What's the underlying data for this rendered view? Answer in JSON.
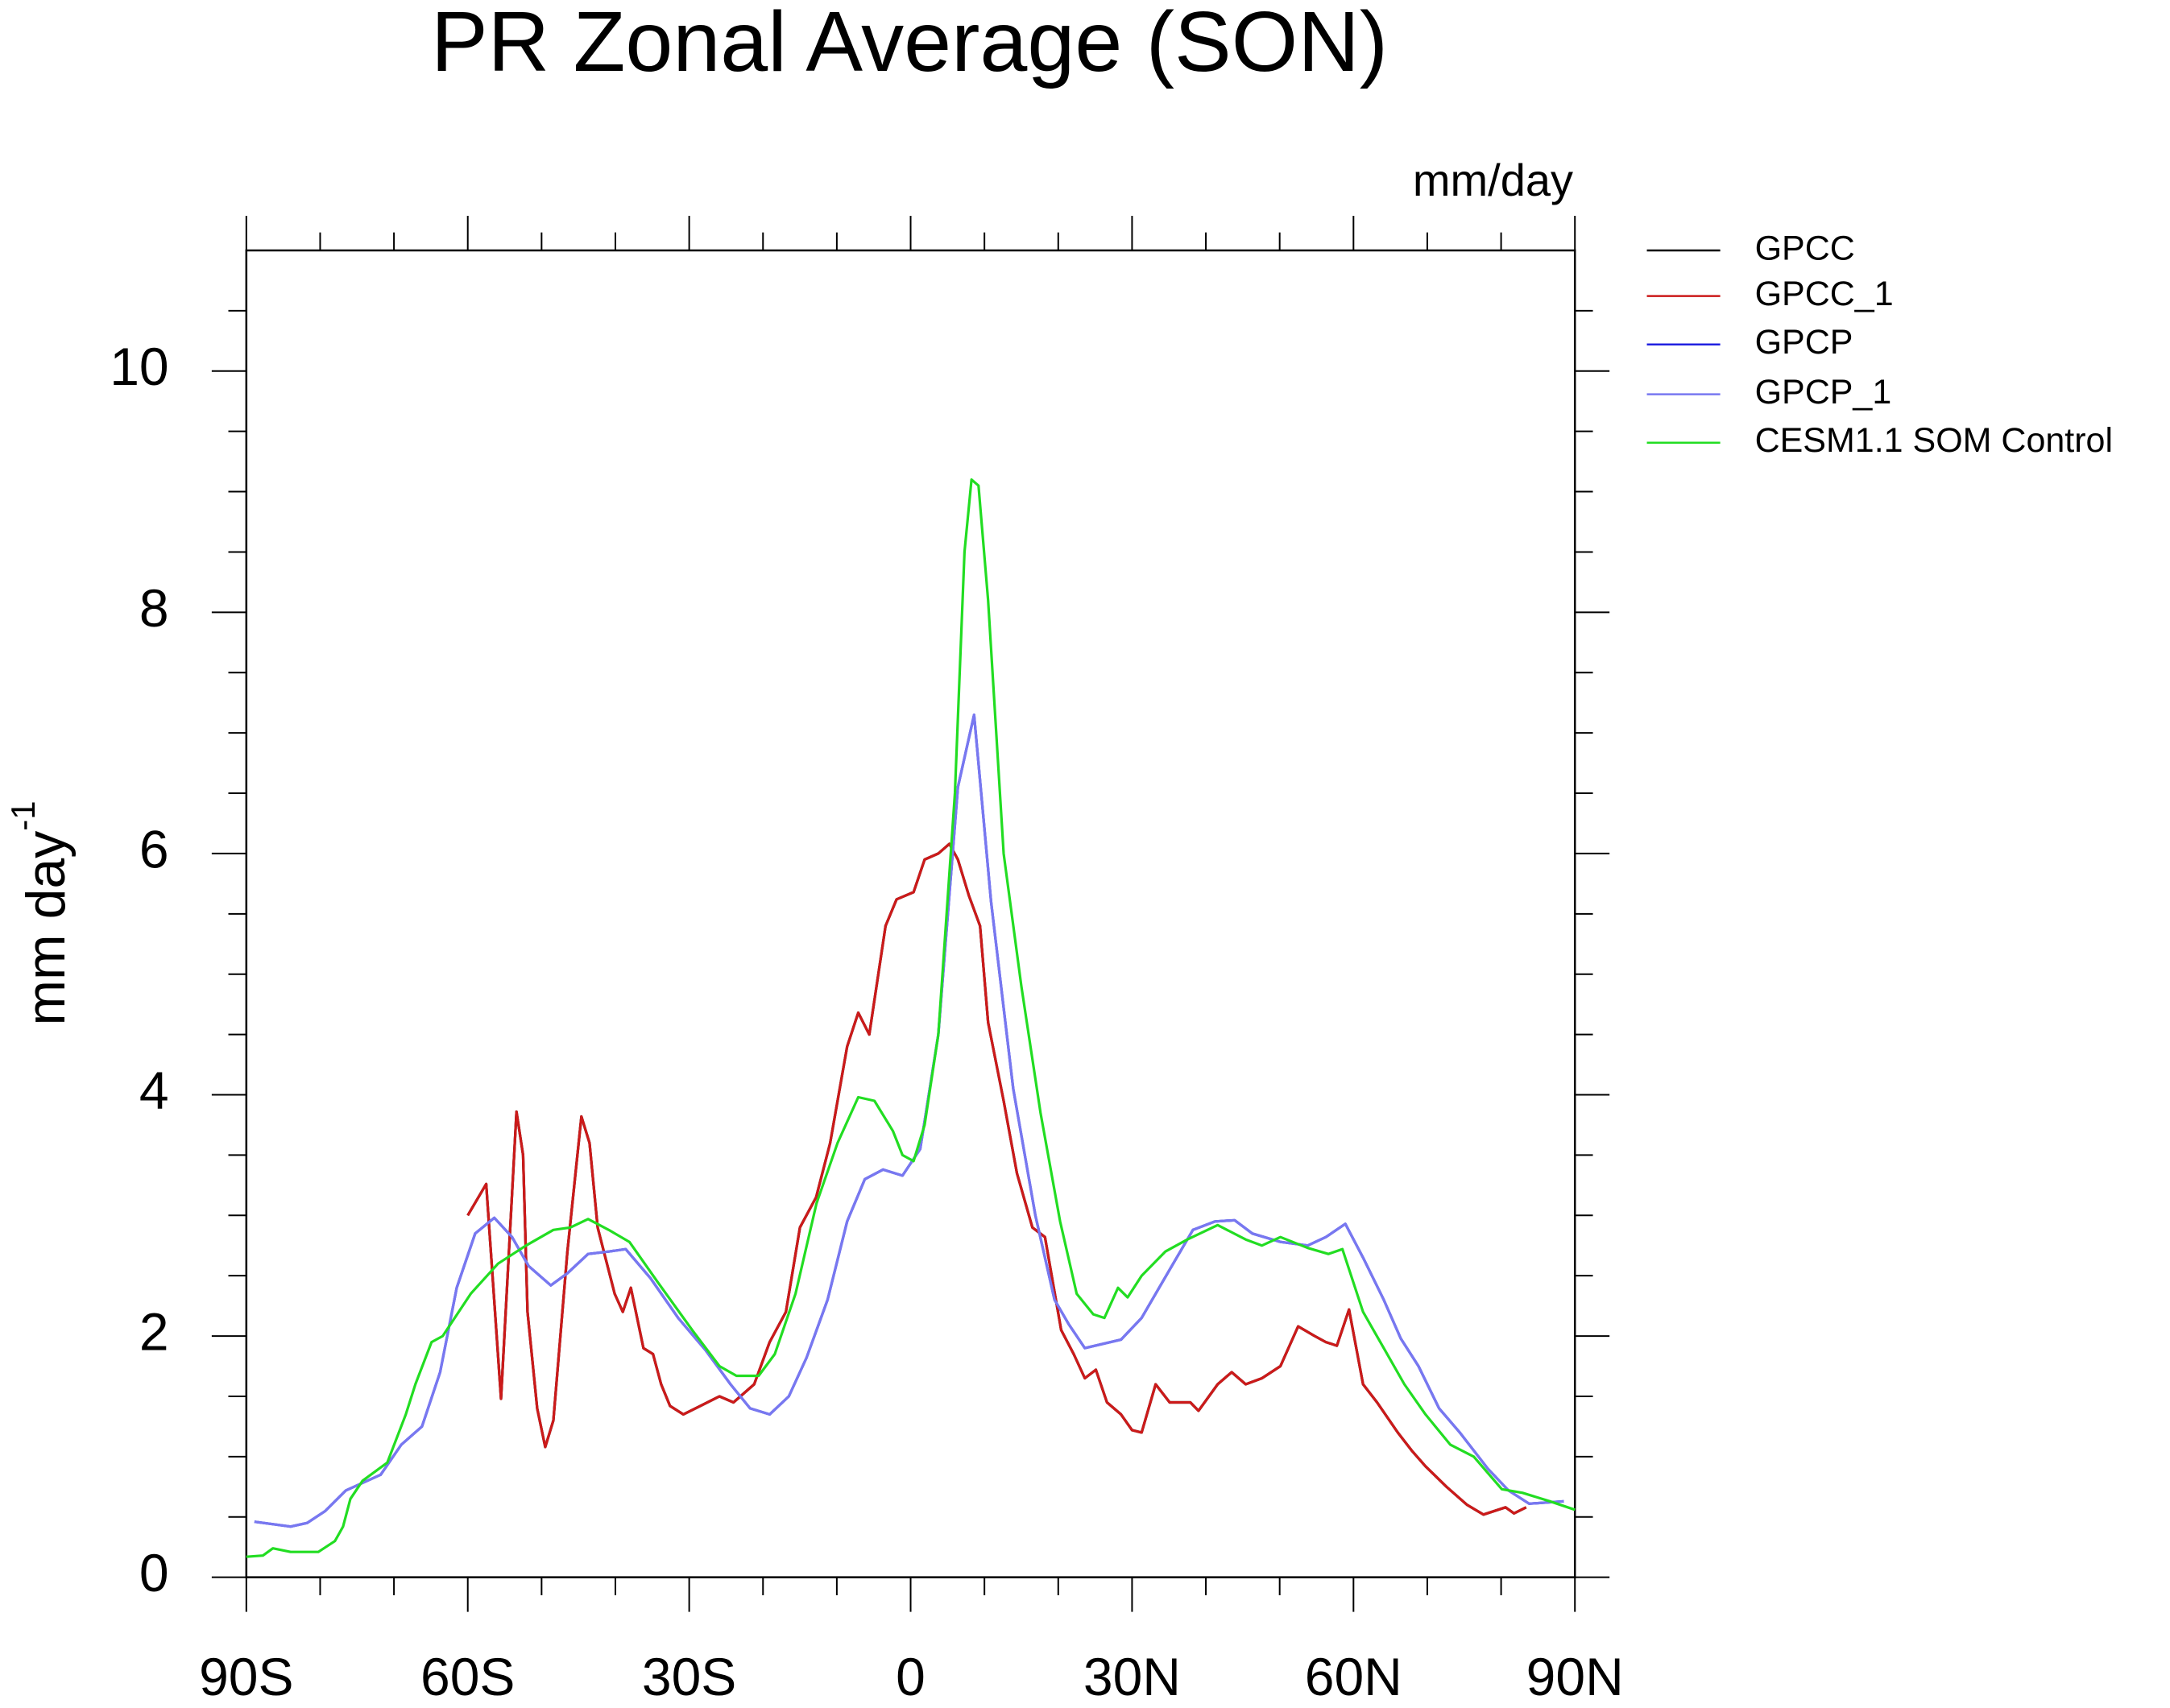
{
  "chart_data": {
    "type": "line",
    "title": "PR Zonal Average (SON)",
    "units": "mm/day",
    "ylabel": {
      "text": "mm day",
      "superscript": "-1"
    },
    "xlim": [
      -90,
      90
    ],
    "ylim": [
      0,
      11
    ],
    "xticks": [
      {
        "value": -90,
        "label": "90S"
      },
      {
        "value": -60,
        "label": "60S"
      },
      {
        "value": -30,
        "label": "30S"
      },
      0,
      {
        "value": 30,
        "label": "30N"
      },
      {
        "value": 60,
        "label": "60N"
      },
      {
        "value": 90,
        "label": "90N"
      }
    ],
    "yticks": [
      0,
      2,
      4,
      6,
      8,
      10
    ],
    "x_minor_ticks": [
      -80,
      -70,
      -50,
      -40,
      -20,
      -10,
      10,
      20,
      40,
      50,
      70,
      80
    ],
    "y_minor_ticks": [
      0.5,
      1,
      1.5,
      2.5,
      3,
      3.5,
      4.5,
      5,
      5.5,
      6.5,
      7,
      7.5,
      8.5,
      9,
      9.5,
      10.5
    ],
    "series": [
      {
        "name": "GPCC",
        "color": "#000000",
        "x": [
          -60,
          -57.5,
          -55.5,
          -53.4,
          -52.5,
          -51.9,
          -50.6,
          -49.5,
          -48.4,
          -46.5,
          -44.6,
          -43.5,
          -42.4,
          -40.1,
          -39,
          -37.9,
          -36.2,
          -34.9,
          -33.8,
          -32.6,
          -30.8,
          -28.5,
          -25.9,
          -24,
          -21.2,
          -19.1,
          -16.9,
          -15,
          -12.8,
          -10.9,
          -8.6,
          -7.1,
          -5.6,
          -3.4,
          -1.9,
          0.4,
          1.9,
          3.75,
          5.25,
          6.4,
          7.9,
          9.4,
          10.5,
          12.6,
          14.4,
          16.5,
          18.2,
          20.4,
          22.1,
          23.6,
          25.1,
          26.6,
          28.5,
          30,
          31.3,
          33.2,
          35.1,
          37.9,
          39,
          41.6,
          43.5,
          45.4,
          47.6,
          50.1,
          52.5,
          54.75,
          56.25,
          57.75,
          59.4,
          61.3,
          63.2,
          66,
          67.9,
          69.75,
          72.6,
          75.4,
          77.6,
          80.6,
          81.75,
          83.4
        ],
        "values": [
          3.0,
          3.26,
          1.48,
          3.86,
          3.5,
          2.2,
          1.4,
          1.08,
          1.3,
          2.7,
          3.82,
          3.6,
          2.9,
          2.35,
          2.2,
          2.4,
          1.9,
          1.85,
          1.6,
          1.42,
          1.35,
          1.42,
          1.5,
          1.45,
          1.6,
          1.95,
          2.2,
          2.9,
          3.15,
          3.6,
          4.4,
          4.68,
          4.5,
          5.4,
          5.62,
          5.68,
          5.95,
          6.0,
          6.08,
          5.95,
          5.65,
          5.4,
          4.6,
          3.95,
          3.35,
          2.9,
          2.82,
          2.05,
          1.85,
          1.65,
          1.72,
          1.45,
          1.35,
          1.22,
          1.2,
          1.6,
          1.45,
          1.45,
          1.38,
          1.6,
          1.7,
          1.6,
          1.65,
          1.75,
          2.08,
          2.0,
          1.95,
          1.92,
          2.22,
          1.6,
          1.45,
          1.2,
          1.05,
          0.92,
          0.75,
          0.6,
          0.52,
          0.58,
          0.53,
          0.58
        ]
      },
      {
        "name": "GPCC_1",
        "color": "#cc1a1a",
        "x": [
          -60,
          -57.5,
          -55.5,
          -53.4,
          -52.5,
          -51.9,
          -50.6,
          -49.5,
          -48.4,
          -46.5,
          -44.6,
          -43.5,
          -42.4,
          -40.1,
          -39,
          -37.9,
          -36.2,
          -34.9,
          -33.8,
          -32.6,
          -30.8,
          -28.5,
          -25.9,
          -24,
          -21.2,
          -19.1,
          -16.9,
          -15,
          -12.8,
          -10.9,
          -8.6,
          -7.1,
          -5.6,
          -3.4,
          -1.9,
          0.4,
          1.9,
          3.75,
          5.25,
          6.4,
          7.9,
          9.4,
          10.5,
          12.6,
          14.4,
          16.5,
          18.2,
          20.4,
          22.1,
          23.6,
          25.1,
          26.6,
          28.5,
          30,
          31.3,
          33.2,
          35.1,
          37.9,
          39,
          41.6,
          43.5,
          45.4,
          47.6,
          50.1,
          52.5,
          54.75,
          56.25,
          57.75,
          59.4,
          61.3,
          63.2,
          66,
          67.9,
          69.75,
          72.6,
          75.4,
          77.6,
          80.6,
          81.75,
          83.4
        ],
        "values": [
          3.0,
          3.26,
          1.48,
          3.86,
          3.5,
          2.2,
          1.4,
          1.08,
          1.3,
          2.7,
          3.82,
          3.6,
          2.9,
          2.35,
          2.2,
          2.4,
          1.9,
          1.85,
          1.6,
          1.42,
          1.35,
          1.42,
          1.5,
          1.45,
          1.6,
          1.95,
          2.2,
          2.9,
          3.15,
          3.6,
          4.4,
          4.68,
          4.5,
          5.4,
          5.62,
          5.68,
          5.95,
          6.0,
          6.08,
          5.95,
          5.65,
          5.4,
          4.6,
          3.95,
          3.35,
          2.9,
          2.82,
          2.05,
          1.85,
          1.65,
          1.72,
          1.45,
          1.35,
          1.22,
          1.2,
          1.6,
          1.45,
          1.45,
          1.38,
          1.6,
          1.7,
          1.6,
          1.65,
          1.75,
          2.08,
          2.0,
          1.95,
          1.92,
          2.22,
          1.6,
          1.45,
          1.2,
          1.05,
          0.92,
          0.75,
          0.6,
          0.52,
          0.58,
          0.53,
          0.58
        ]
      },
      {
        "name": "GPCP",
        "color": "#2020e0",
        "x": [
          -88.9,
          -84,
          -81.75,
          -79.3,
          -76.5,
          -71.8,
          -69,
          -66.2,
          -63.75,
          -61.5,
          -59,
          -56.4,
          -54,
          -51.75,
          -48.75,
          -46.5,
          -43.7,
          -40.9,
          -38.6,
          -35.25,
          -31.5,
          -27.75,
          -24.4,
          -21.75,
          -19.1,
          -16.5,
          -14.1,
          -11.25,
          -8.6,
          -6.2,
          -3.75,
          -1.1,
          1.3,
          3.75,
          6.4,
          8.6,
          10.9,
          13.9,
          16.9,
          19.5,
          21.4,
          23.6,
          28.5,
          31.3,
          35.1,
          38.25,
          41.25,
          43.9,
          46.3,
          50.1,
          53.8,
          56.25,
          58.9,
          61.3,
          64.1,
          66.4,
          68.8,
          71.6,
          74.4,
          78.2,
          81,
          83.8,
          88.5
        ],
        "values": [
          0.46,
          0.42,
          0.45,
          0.55,
          0.72,
          0.85,
          1.1,
          1.25,
          1.7,
          2.4,
          2.85,
          2.98,
          2.82,
          2.58,
          2.42,
          2.52,
          2.68,
          2.7,
          2.72,
          2.48,
          2.15,
          1.88,
          1.6,
          1.4,
          1.35,
          1.5,
          1.82,
          2.3,
          2.95,
          3.3,
          3.38,
          3.33,
          3.55,
          4.5,
          6.55,
          7.15,
          5.6,
          4.05,
          3.0,
          2.3,
          2.1,
          1.9,
          1.97,
          2.15,
          2.55,
          2.88,
          2.95,
          2.96,
          2.85,
          2.78,
          2.75,
          2.82,
          2.93,
          2.65,
          2.3,
          1.98,
          1.75,
          1.4,
          1.2,
          0.9,
          0.72,
          0.61,
          0.63
        ]
      },
      {
        "name": "GPCP_1",
        "color": "#7878f0",
        "x": [
          -88.9,
          -84,
          -81.75,
          -79.3,
          -76.5,
          -71.8,
          -69,
          -66.2,
          -63.75,
          -61.5,
          -59,
          -56.4,
          -54,
          -51.75,
          -48.75,
          -46.5,
          -43.7,
          -40.9,
          -38.6,
          -35.25,
          -31.5,
          -27.75,
          -24.4,
          -21.75,
          -19.1,
          -16.5,
          -14.1,
          -11.25,
          -8.6,
          -6.2,
          -3.75,
          -1.1,
          1.3,
          3.75,
          6.4,
          8.6,
          10.9,
          13.9,
          16.9,
          19.5,
          21.4,
          23.6,
          28.5,
          31.3,
          35.1,
          38.25,
          41.25,
          43.9,
          46.3,
          50.1,
          53.8,
          56.25,
          58.9,
          61.3,
          64.1,
          66.4,
          68.8,
          71.6,
          74.4,
          78.2,
          81,
          83.8,
          88.5
        ],
        "values": [
          0.46,
          0.42,
          0.45,
          0.55,
          0.72,
          0.85,
          1.1,
          1.25,
          1.7,
          2.4,
          2.85,
          2.98,
          2.82,
          2.58,
          2.42,
          2.52,
          2.68,
          2.7,
          2.72,
          2.48,
          2.15,
          1.88,
          1.6,
          1.4,
          1.35,
          1.5,
          1.82,
          2.3,
          2.95,
          3.3,
          3.38,
          3.33,
          3.55,
          4.5,
          6.55,
          7.15,
          5.6,
          4.05,
          3.0,
          2.3,
          2.1,
          1.9,
          1.97,
          2.15,
          2.55,
          2.88,
          2.95,
          2.96,
          2.85,
          2.78,
          2.75,
          2.82,
          2.93,
          2.65,
          2.3,
          1.98,
          1.75,
          1.4,
          1.2,
          0.9,
          0.72,
          0.61,
          0.63
        ]
      },
      {
        "name": "CESM1.1 SOM Control",
        "color": "#22dd22",
        "x": [
          -90,
          -87.75,
          -86.4,
          -84,
          -80.25,
          -78,
          -76.9,
          -75.9,
          -74.25,
          -70.9,
          -68.4,
          -67.1,
          -64.9,
          -63.4,
          -59.6,
          -55.9,
          -52.1,
          -48.4,
          -46.1,
          -43.7,
          -40.9,
          -38.1,
          -34.3,
          -29.6,
          -25.9,
          -23.6,
          -20.6,
          -18.4,
          -15.6,
          -12.75,
          -9.9,
          -7.1,
          -4.9,
          -2.4,
          -1.1,
          0.4,
          1.9,
          3.75,
          6,
          7.3,
          8.25,
          9.2,
          10.5,
          12.6,
          15,
          17.6,
          20.25,
          22.5,
          24.75,
          26.25,
          28.1,
          29.4,
          31.3,
          34.5,
          37.5,
          41.6,
          45.4,
          47.6,
          50.1,
          53.8,
          56.6,
          58.5,
          61.3,
          64.1,
          66.9,
          69.75,
          73.1,
          76.3,
          80.1,
          82.9,
          86.6,
          90
        ],
        "values": [
          0.17,
          0.18,
          0.24,
          0.21,
          0.21,
          0.3,
          0.42,
          0.65,
          0.8,
          0.95,
          1.35,
          1.6,
          1.95,
          2.0,
          2.35,
          2.6,
          2.75,
          2.88,
          2.9,
          2.97,
          2.88,
          2.78,
          2.45,
          2.05,
          1.75,
          1.67,
          1.67,
          1.85,
          2.35,
          3.1,
          3.6,
          3.98,
          3.95,
          3.7,
          3.5,
          3.45,
          3.75,
          4.5,
          6.5,
          8.5,
          9.1,
          9.05,
          8.1,
          6.0,
          4.9,
          3.85,
          2.95,
          2.35,
          2.18,
          2.15,
          2.4,
          2.32,
          2.5,
          2.7,
          2.8,
          2.92,
          2.8,
          2.75,
          2.82,
          2.73,
          2.68,
          2.72,
          2.2,
          1.9,
          1.6,
          1.35,
          1.1,
          1.0,
          0.73,
          0.7,
          0.63,
          0.56
        ]
      }
    ]
  }
}
